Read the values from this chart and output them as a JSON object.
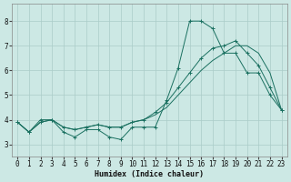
{
  "xlabel": "Humidex (Indice chaleur)",
  "bg_color": "#cce8e4",
  "line_color": "#1a7060",
  "grid_color": "#aaccc8",
  "xlim": [
    -0.5,
    23.5
  ],
  "ylim": [
    2.5,
    8.7
  ],
  "xticks": [
    0,
    1,
    2,
    3,
    4,
    5,
    6,
    7,
    8,
    9,
    10,
    11,
    12,
    13,
    14,
    15,
    16,
    17,
    18,
    19,
    20,
    21,
    22,
    23
  ],
  "yticks": [
    3,
    4,
    5,
    6,
    7,
    8
  ],
  "series1_x": [
    0,
    1,
    2,
    3,
    4,
    5,
    6,
    7,
    8,
    9,
    10,
    11,
    12,
    13,
    14,
    15,
    16,
    17,
    18,
    19,
    20,
    21,
    22,
    23
  ],
  "series1_y": [
    3.9,
    3.5,
    4.0,
    4.0,
    3.5,
    3.3,
    3.6,
    3.6,
    3.3,
    3.2,
    3.7,
    3.7,
    3.7,
    4.8,
    6.1,
    8.0,
    8.0,
    7.7,
    6.7,
    6.7,
    5.9,
    5.9,
    5.0,
    4.4
  ],
  "series2_x": [
    0,
    1,
    2,
    3,
    4,
    5,
    6,
    7,
    8,
    9,
    10,
    11,
    12,
    13,
    14,
    15,
    16,
    17,
    18,
    19,
    20,
    21,
    22,
    23
  ],
  "series2_y": [
    3.9,
    3.5,
    3.9,
    4.0,
    3.7,
    3.6,
    3.7,
    3.8,
    3.7,
    3.7,
    3.9,
    4.0,
    4.2,
    4.5,
    5.0,
    5.5,
    6.0,
    6.4,
    6.7,
    7.0,
    7.0,
    6.7,
    5.9,
    4.4
  ],
  "series3_x": [
    0,
    1,
    2,
    3,
    4,
    5,
    6,
    7,
    8,
    9,
    10,
    11,
    12,
    13,
    14,
    15,
    16,
    17,
    18,
    19,
    20,
    21,
    22,
    23
  ],
  "series3_y": [
    3.9,
    3.5,
    3.9,
    4.0,
    3.7,
    3.6,
    3.7,
    3.8,
    3.7,
    3.7,
    3.9,
    4.0,
    4.3,
    4.7,
    5.3,
    5.9,
    6.5,
    6.9,
    7.0,
    7.2,
    6.7,
    6.2,
    5.3,
    4.4
  ]
}
